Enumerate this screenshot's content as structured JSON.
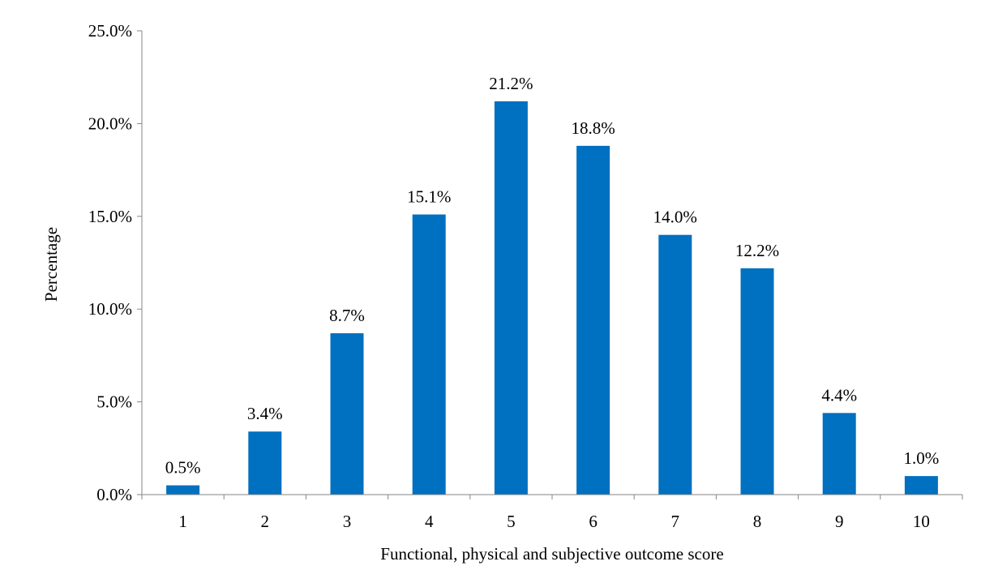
{
  "chart_data": {
    "type": "bar",
    "title": "",
    "xlabel": "Functional, physical and subjective outcome score",
    "ylabel": "Percentage",
    "categories": [
      "1",
      "2",
      "3",
      "4",
      "5",
      "6",
      "7",
      "8",
      "9",
      "10"
    ],
    "values": [
      0.5,
      3.4,
      8.7,
      15.1,
      21.2,
      18.8,
      14.0,
      12.2,
      4.4,
      1.0
    ],
    "data_labels": [
      "0.5%",
      "3.4%",
      "8.7%",
      "15.1%",
      "21.2%",
      "18.8%",
      "14.0%",
      "12.2%",
      "4.4%",
      "1.0%"
    ],
    "yticks": [
      0,
      5,
      10,
      15,
      20,
      25
    ],
    "ytick_labels": [
      "0.0%",
      "5.0%",
      "10.0%",
      "15.0%",
      "20.0%",
      "25.0%"
    ],
    "ylim": [
      0,
      25
    ],
    "grid": false,
    "legend": "none",
    "bar_color": "#0070C0"
  }
}
